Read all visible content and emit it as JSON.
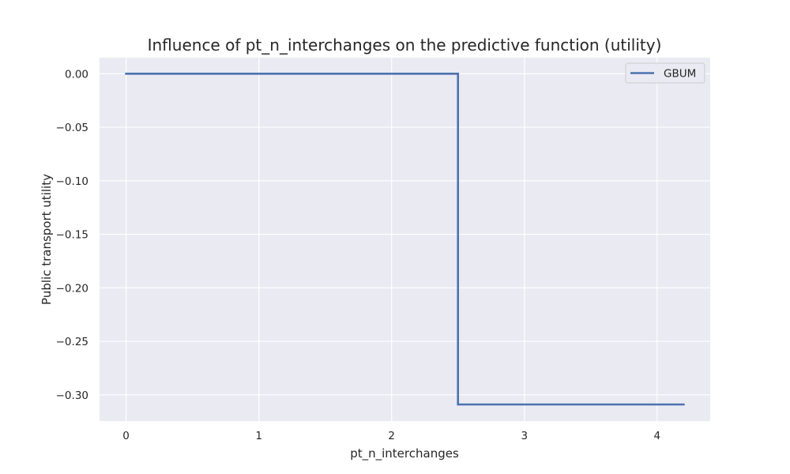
{
  "chart_data": {
    "type": "line",
    "title": "Influence of pt_n_interchanges on the predictive function (utility)",
    "xlabel": "pt_n_interchanges",
    "ylabel": "Public transport utility",
    "xlim": [
      -0.2,
      4.4
    ],
    "ylim": [
      -0.3245,
      0.015
    ],
    "x_ticks": [
      0,
      1,
      2,
      3,
      4
    ],
    "x_tick_labels": [
      "0",
      "1",
      "2",
      "3",
      "4"
    ],
    "y_ticks": [
      0.0,
      -0.05,
      -0.1,
      -0.15,
      -0.2,
      -0.25,
      -0.3
    ],
    "y_tick_labels": [
      "0.00",
      "−0.05",
      "−0.10",
      "−0.15",
      "−0.20",
      "−0.25",
      "−0.30"
    ],
    "grid": true,
    "legend_position": "top-right",
    "background_color": "#eaeaf2",
    "grid_color": "#ffffff",
    "series": [
      {
        "name": "GBUM",
        "color": "#4c72b0",
        "step": true,
        "x": [
          0,
          2.5,
          2.5,
          4.2
        ],
        "y": [
          0.0,
          0.0,
          -0.309,
          -0.309
        ]
      }
    ]
  }
}
